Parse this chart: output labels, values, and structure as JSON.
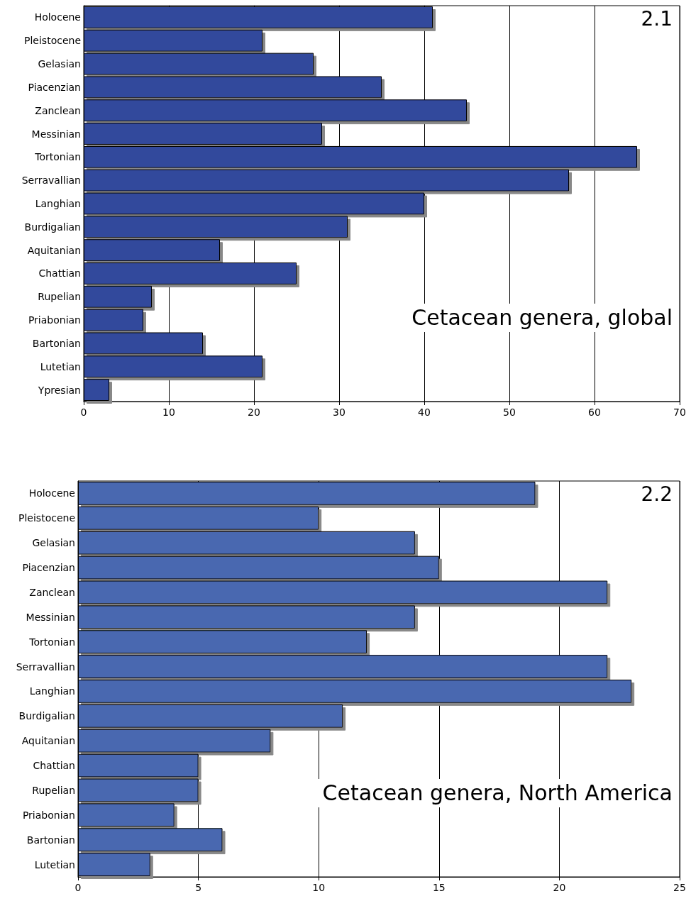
{
  "chart_data": [
    {
      "type": "bar",
      "orientation": "horizontal",
      "categories": [
        "Holocene",
        "Pleistocene",
        "Gelasian",
        "Piacenzian",
        "Zanclean",
        "Messinian",
        "Tortonian",
        "Serravallian",
        "Langhian",
        "Burdigalian",
        "Aquitanian",
        "Chattian",
        "Rupelian",
        "Priabonian",
        "Bartonian",
        "Lutetian",
        "Ypresian"
      ],
      "series": [
        {
          "color": "#334a9c",
          "values": [
            41,
            21,
            27,
            35,
            45,
            28,
            65,
            57,
            40,
            31,
            16,
            25,
            8,
            7,
            14,
            21,
            3
          ]
        }
      ],
      "xlim": [
        0,
        70
      ],
      "xticks": [
        0,
        10,
        20,
        30,
        40,
        50,
        60,
        70
      ],
      "grid": "x",
      "annotations": [
        "2.1",
        "Cetacean genera, global"
      ]
    },
    {
      "type": "bar",
      "orientation": "horizontal",
      "categories": [
        "Holocene",
        "Pleistocene",
        "Gelasian",
        "Piacenzian",
        "Zanclean",
        "Messinian",
        "Tortonian",
        "Serravallian",
        "Langhian",
        "Burdigalian",
        "Aquitanian",
        "Chattian",
        "Rupelian",
        "Priabonian",
        "Bartonian",
        "Lutetian"
      ],
      "series": [
        {
          "color": "#4a68b0",
          "values": [
            19,
            10,
            14,
            15,
            22,
            14,
            12,
            22,
            23,
            11,
            8,
            5,
            5,
            4,
            6,
            3
          ]
        }
      ],
      "xlim": [
        0,
        25
      ],
      "xticks": [
        0,
        5,
        10,
        15,
        20,
        25
      ],
      "grid": "x",
      "annotations": [
        "2.2",
        "Cetacean genera, North America"
      ]
    }
  ]
}
